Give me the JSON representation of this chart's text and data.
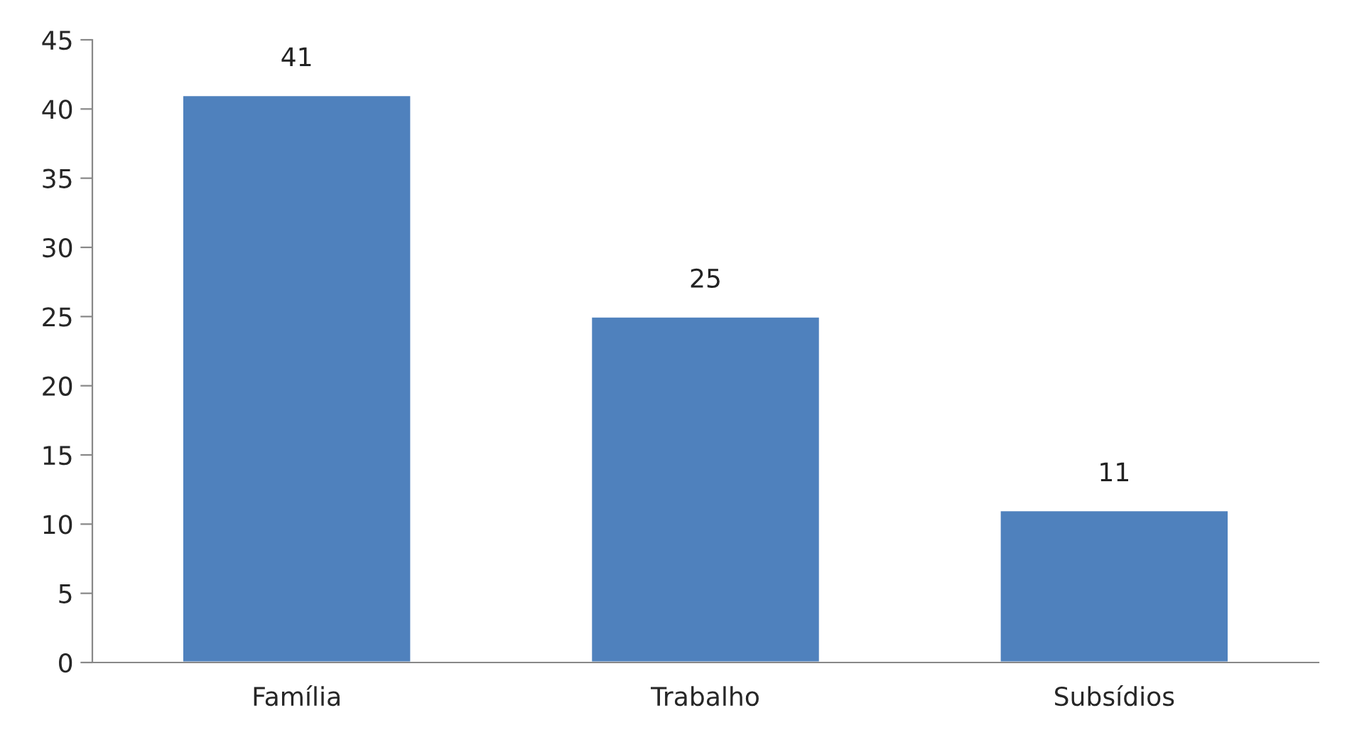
{
  "chart_data": {
    "type": "bar",
    "categories": [
      "Família",
      "Trabalho",
      "Subsídios"
    ],
    "values": [
      41,
      25,
      11
    ],
    "color": "#4f81bd",
    "ylim": [
      0,
      45
    ],
    "yticks": [
      0,
      5,
      10,
      15,
      20,
      25,
      30,
      35,
      40,
      45
    ],
    "data_labels": true,
    "grid": false,
    "legend": false
  }
}
